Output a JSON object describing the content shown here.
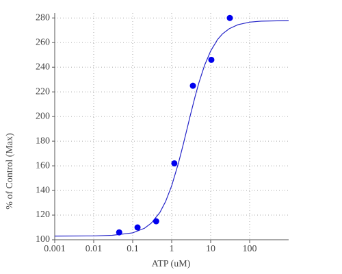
{
  "chart_data": {
    "type": "scatter",
    "x_label": "ATP (uM)",
    "y_label": "% of Control (Max)",
    "xscale": "log",
    "grid": true,
    "xlim": [
      0.001,
      1000
    ],
    "xticks": [
      0.001,
      0.01,
      0.1,
      1,
      10,
      100
    ],
    "ylim": [
      100,
      284
    ],
    "yticks": [
      100,
      120,
      140,
      160,
      180,
      200,
      220,
      240,
      260,
      280
    ],
    "series": [
      {
        "type": "line",
        "color": "#2323c8",
        "x": [
          0.001,
          0.01,
          0.03,
          0.1,
          0.2,
          0.3,
          0.5,
          0.7,
          1,
          1.5,
          2,
          3,
          4,
          5,
          7,
          10,
          15,
          20,
          30,
          50,
          100,
          200,
          1000
        ],
        "values": [
          103.0,
          103.1,
          103.6,
          105.6,
          109.3,
          113.5,
          122.2,
          131.1,
          143.8,
          162.5,
          177.9,
          200.8,
          216.4,
          227.5,
          241.7,
          253.2,
          262.5,
          267,
          271.3,
          274.5,
          276.6,
          277.4,
          277.9
        ]
      },
      {
        "type": "scatter",
        "color": "#0000ee",
        "x": [
          0.045,
          0.133,
          0.4,
          1.17,
          3.5,
          10.4,
          31
        ],
        "values": [
          106,
          110,
          115,
          162,
          225,
          246,
          280
        ]
      }
    ]
  }
}
